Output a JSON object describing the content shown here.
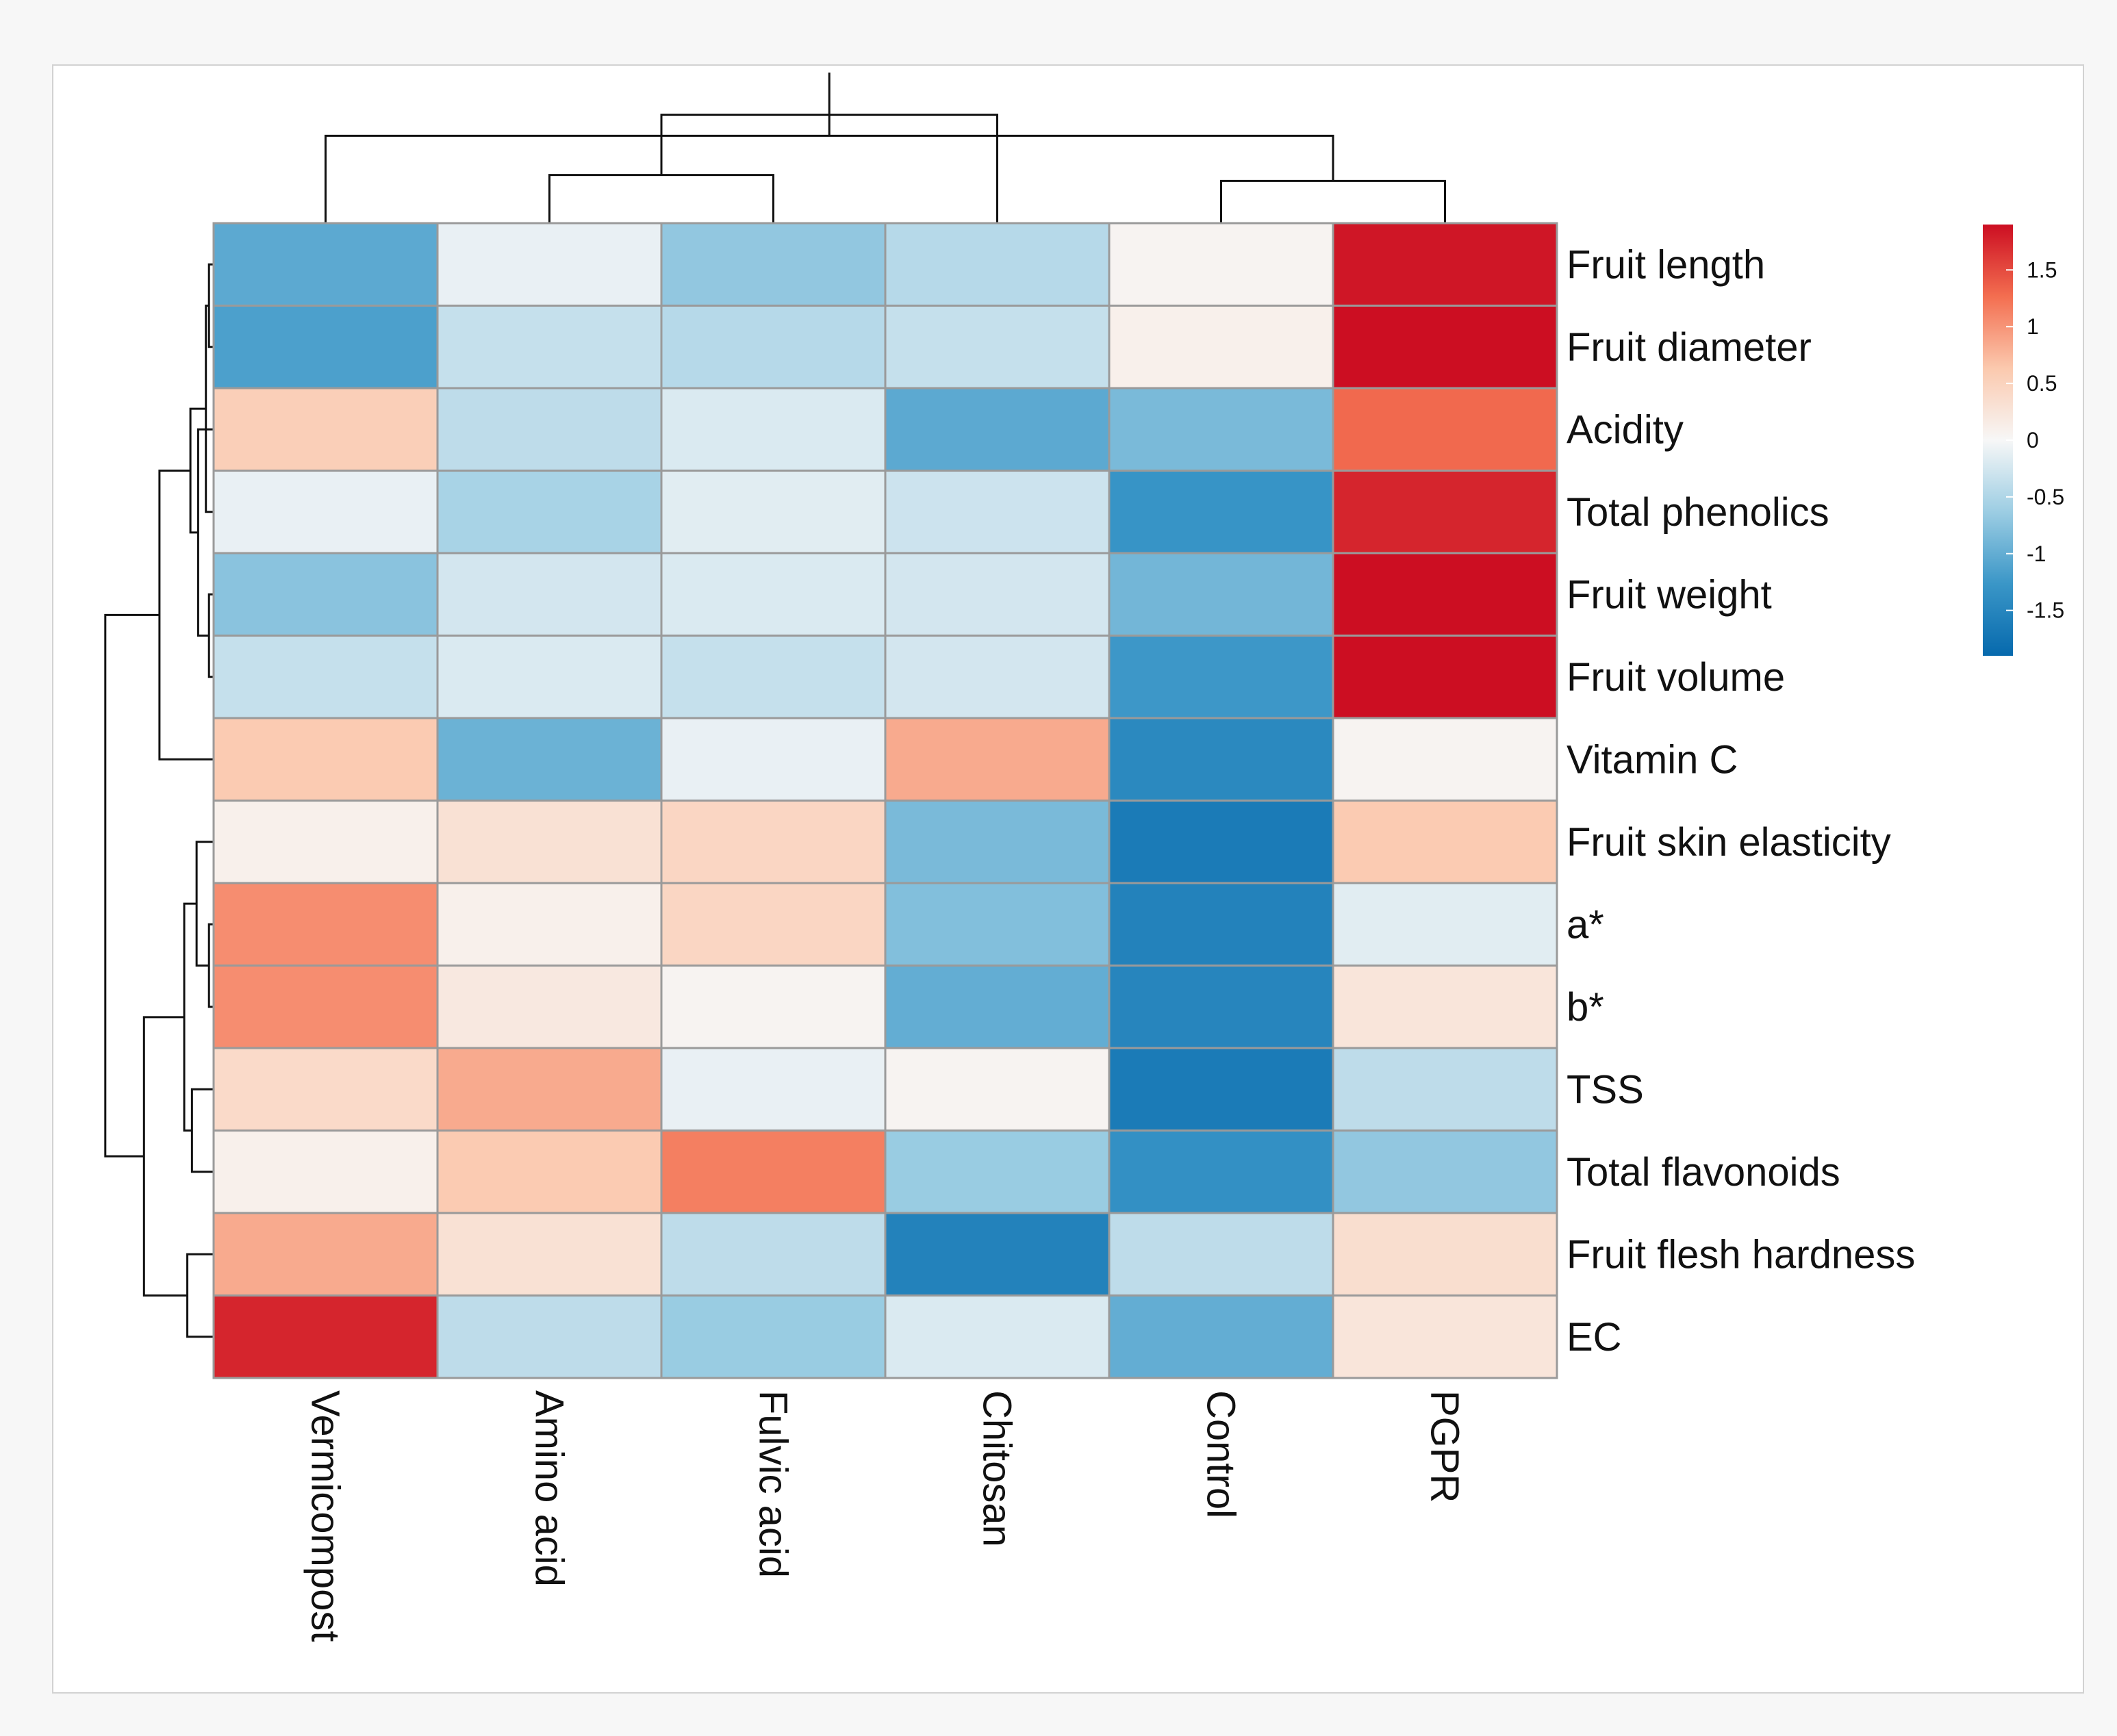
{
  "chart_data": {
    "type": "heatmap",
    "title": "",
    "columns": [
      "Vermicompost",
      "Amino acid",
      "Fulvic acid",
      "Chitosan",
      "Control",
      "PGPR"
    ],
    "rows": [
      "Fruit length",
      "Fruit diameter",
      "Acidity",
      "Total phenolics",
      "Fruit weight",
      "Fruit volume",
      "Vitamin C",
      "Fruit skin elasticity",
      "a*",
      "b*",
      "TSS",
      "Total flavonoids",
      "Fruit flesh hardness",
      "EC"
    ],
    "values": [
      [
        -1.05,
        -0.1,
        -0.7,
        -0.45,
        0.05,
        1.85
      ],
      [
        -1.15,
        -0.35,
        -0.45,
        -0.35,
        0.1,
        1.9
      ],
      [
        0.55,
        -0.4,
        -0.2,
        -1.05,
        -0.85,
        1.3
      ],
      [
        -0.1,
        -0.55,
        -0.15,
        -0.3,
        -1.3,
        1.75
      ],
      [
        -0.75,
        -0.25,
        -0.2,
        -0.25,
        -0.9,
        1.9
      ],
      [
        -0.35,
        -0.2,
        -0.35,
        -0.25,
        -1.25,
        1.9
      ],
      [
        0.6,
        -0.95,
        -0.1,
        0.85,
        -1.45,
        0.05
      ],
      [
        0.1,
        0.3,
        0.45,
        -0.85,
        -1.65,
        0.6
      ],
      [
        1.05,
        0.1,
        0.45,
        -0.8,
        -1.55,
        -0.15
      ],
      [
        1.05,
        0.2,
        0.05,
        -1.0,
        -1.5,
        0.25
      ],
      [
        0.4,
        0.85,
        -0.1,
        0.05,
        -1.65,
        -0.4
      ],
      [
        0.1,
        0.6,
        1.15,
        -0.65,
        -1.35,
        -0.7
      ],
      [
        0.85,
        0.3,
        -0.4,
        -1.55,
        -0.4,
        0.35
      ],
      [
        1.75,
        -0.4,
        -0.65,
        -0.2,
        -1.0,
        0.25
      ]
    ],
    "legend": {
      "min": -1.9,
      "max": 1.9,
      "ticks": [
        -1.5,
        -1,
        -0.5,
        0,
        0.5,
        1,
        1.5
      ],
      "tick_labels": [
        "-1.5",
        "-1",
        "-0.5",
        "0",
        "0.5",
        "1",
        "1.5"
      ],
      "colors": [
        "#0669ad",
        "#3a96c7",
        "#9ccde3",
        "#f7f7f7",
        "#fbc9ae",
        "#f36e50",
        "#cc0e22"
      ]
    },
    "column_dendrogram": {
      "merges": [
        [
          4,
          5,
          0.28
        ],
        [
          1,
          2,
          0.32
        ],
        [
          0,
          6,
          0.58
        ],
        [
          3,
          7,
          0.72
        ],
        [
          8,
          9,
          1.0
        ]
      ]
    },
    "row_dendrogram": {
      "merges": [
        [
          0,
          1,
          0.03
        ],
        [
          4,
          5,
          0.03
        ],
        [
          8,
          9,
          0.03
        ],
        [
          3,
          14,
          0.05
        ],
        [
          2,
          15,
          0.1
        ],
        [
          7,
          16,
          0.11
        ],
        [
          10,
          11,
          0.14
        ],
        [
          17,
          18,
          0.15
        ],
        [
          12,
          13,
          0.17
        ],
        [
          19,
          20,
          0.19
        ],
        [
          6,
          21,
          0.35
        ],
        [
          22,
          23,
          0.45
        ],
        [
          24,
          25,
          0.7
        ]
      ]
    }
  }
}
